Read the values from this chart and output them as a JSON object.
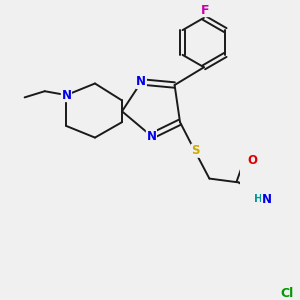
{
  "background_color": "#f0f0f0",
  "bond_color": "#1a1a1a",
  "atom_colors": {
    "N": "#0000ee",
    "S": "#ccaa00",
    "O": "#dd0000",
    "F": "#cc00aa",
    "Cl": "#009900",
    "H": "#009999",
    "C": "#1a1a1a"
  },
  "figsize": [
    3.0,
    3.0
  ],
  "dpi": 100
}
